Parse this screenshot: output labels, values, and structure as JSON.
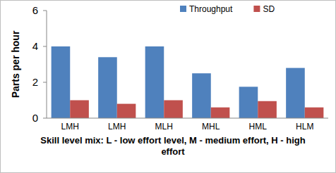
{
  "chart_data": {
    "type": "bar",
    "y_label": "Parts per hour",
    "x_label": "Skill level mix: L - low effort level, M - medium effort, H - high effort",
    "categories": [
      "LMH",
      "LMH",
      "MLH",
      "MHL",
      "HML",
      "HLM"
    ],
    "series": [
      {
        "name": "Throughput",
        "color": "#4f81bd",
        "values": [
          4.0,
          3.4,
          4.0,
          2.5,
          1.75,
          2.8
        ]
      },
      {
        "name": "SD",
        "color": "#c0504d",
        "values": [
          1.0,
          0.8,
          1.0,
          0.6,
          0.95,
          0.6
        ]
      }
    ],
    "ylim": [
      0,
      6
    ],
    "yticks": [
      0,
      2,
      4,
      6
    ],
    "grid": false,
    "legend": "top"
  }
}
